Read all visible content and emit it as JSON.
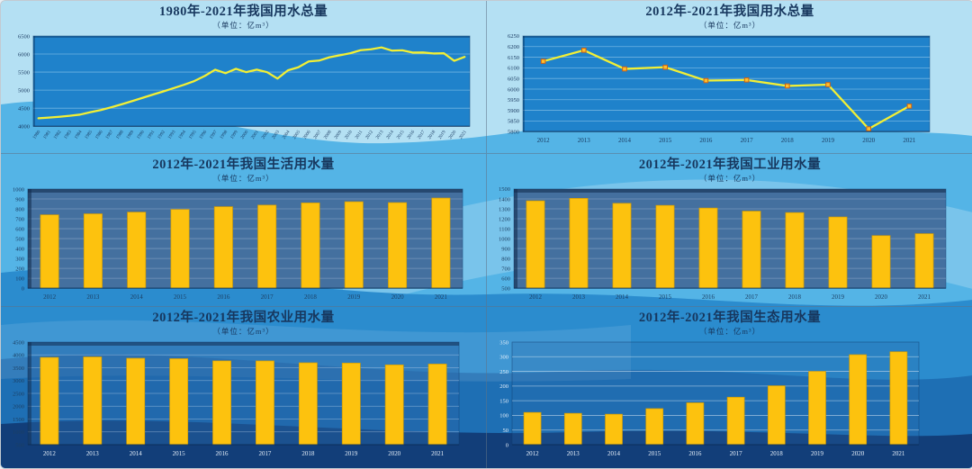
{
  "page": {
    "colors": {
      "title_text": "#17375e",
      "bar_fill": "#fdc20e",
      "bar_stroke": "#cf9a05",
      "line": "#f2ef35",
      "marker_fill": "#fdbf2d",
      "marker_stroke": "#d26011",
      "plot_blue": "#1f82cb",
      "plot_steel": "#44709f",
      "wave_light": "#b4e0f3",
      "wave_medium": "#54b4e6",
      "wave_deep": "#2b8cce",
      "wave_deeper": "#1e6fb4",
      "wave_navy": "#123e79"
    }
  },
  "charts": [
    {
      "id": "total-water-1980-2021",
      "title": "1980年-2021年我国用水总量",
      "subtitle": "（单位：亿m³）",
      "chart_data": {
        "type": "line",
        "categories": [
          "1980",
          "1981",
          "1982",
          "1983",
          "1984",
          "1985",
          "1986",
          "1987",
          "1988",
          "1989",
          "1990",
          "1991",
          "1992",
          "1993",
          "1994",
          "1995",
          "1996",
          "1997",
          "1998",
          "1999",
          "2000",
          "2001",
          "2002",
          "2003",
          "2004",
          "2005",
          "2006",
          "2007",
          "2008",
          "2009",
          "2010",
          "2011",
          "2012",
          "2013",
          "2014",
          "2015",
          "2016",
          "2017",
          "2018",
          "2019",
          "2020",
          "2021"
        ],
        "values": [
          4220,
          4240,
          4262,
          4288,
          4322,
          4388,
          4448,
          4525,
          4608,
          4695,
          4785,
          4875,
          4962,
          5055,
          5148,
          5252,
          5392,
          5566,
          5470,
          5591,
          5498,
          5567,
          5497,
          5320,
          5548,
          5633,
          5795,
          5819,
          5910,
          5965,
          6022,
          6107,
          6131,
          6183,
          6095,
          6103,
          6040,
          6043,
          6015,
          6021,
          5813,
          5920
        ],
        "unit": "亿m³",
        "ylim": [
          4000,
          6500
        ],
        "ytick_step": 500,
        "grid": true,
        "legend": false,
        "markers": false
      }
    },
    {
      "id": "total-water-2012-2021",
      "title": "2012年-2021年我国用水总量",
      "subtitle": "（单位：亿m³）",
      "chart_data": {
        "type": "line",
        "categories": [
          "2012",
          "2013",
          "2014",
          "2015",
          "2016",
          "2017",
          "2018",
          "2019",
          "2020",
          "2021"
        ],
        "values": [
          6131,
          6183,
          6095,
          6103,
          6040,
          6043,
          6015,
          6021,
          5813,
          5920
        ],
        "unit": "亿m³",
        "ylim": [
          5800,
          6250
        ],
        "ytick_step": 50,
        "grid": true,
        "legend": false,
        "markers": true
      }
    },
    {
      "id": "domestic-water-2012-2021",
      "title": "2012年-2021年我国生活用水量",
      "subtitle": "（单位：亿m³）",
      "chart_data": {
        "type": "bar",
        "categories": [
          "2012",
          "2013",
          "2014",
          "2015",
          "2016",
          "2017",
          "2018",
          "2019",
          "2020",
          "2021"
        ],
        "values": [
          740,
          750,
          767,
          794,
          822,
          838,
          860,
          872,
          863,
          909
        ],
        "unit": "亿m³",
        "ylim": [
          0,
          1000
        ],
        "ytick_step": 100,
        "grid": true,
        "legend": false
      }
    },
    {
      "id": "industrial-water-2012-2021",
      "title": "2012年-2021年我国工业用水量",
      "subtitle": "（单位：亿m³）",
      "chart_data": {
        "type": "bar",
        "categories": [
          "2012",
          "2013",
          "2014",
          "2015",
          "2016",
          "2017",
          "2018",
          "2019",
          "2020",
          "2021"
        ],
        "values": [
          1381,
          1406,
          1356,
          1335,
          1308,
          1277,
          1262,
          1218,
          1030,
          1050
        ],
        "unit": "亿m³",
        "ylim": [
          500,
          1500
        ],
        "ytick_step": 100,
        "grid": true,
        "legend": false
      }
    },
    {
      "id": "agricultural-water-2012-2021",
      "title": "2012年-2021年我国农业用水量",
      "subtitle": "（单位：亿m³）",
      "chart_data": {
        "type": "bar",
        "categories": [
          "2012",
          "2013",
          "2014",
          "2015",
          "2016",
          "2017",
          "2018",
          "2019",
          "2020",
          "2021"
        ],
        "values": [
          3902,
          3922,
          3869,
          3852,
          3768,
          3766,
          3693,
          3682,
          3612,
          3644
        ],
        "unit": "亿m³",
        "ylim": [
          500,
          4500
        ],
        "ytick_step": 500,
        "grid": true,
        "legend": false
      }
    },
    {
      "id": "ecological-water-2012-2021",
      "title": "2012年-2021年我国生态用水量",
      "subtitle": "（单位：亿m³）",
      "chart_data": {
        "type": "bar",
        "categories": [
          "2012",
          "2013",
          "2014",
          "2015",
          "2016",
          "2017",
          "2018",
          "2019",
          "2020",
          "2021"
        ],
        "values": [
          110,
          107,
          104,
          123,
          143,
          162,
          201,
          250,
          307,
          317
        ],
        "unit": "亿m³",
        "ylim": [
          0,
          350
        ],
        "ytick_step": 50,
        "grid": true,
        "legend": false
      }
    }
  ]
}
